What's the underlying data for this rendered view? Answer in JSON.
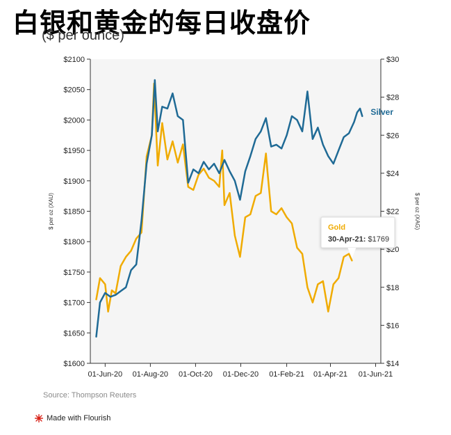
{
  "page": {
    "title": "白银和黄金的每日收盘价",
    "subtitle": "($ per ounce)",
    "source": "Source: Thompson Reuters",
    "made_with": "Made with Flourish"
  },
  "colors": {
    "gold": "#F0AB00",
    "silver": "#1F6A95",
    "plot_bg": "#F5F5F5",
    "axis": "#333333"
  },
  "chart_data": {
    "type": "line",
    "x_ticks": [
      "01-Jun-20",
      "01-Aug-20",
      "01-Oct-20",
      "01-Dec-20",
      "01-Feb-21",
      "01-Apr-21",
      "01-Jun-21"
    ],
    "x_range": [
      "2020-05-12",
      "2021-06-08"
    ],
    "y_left": {
      "label": "$ per oz (XAU)",
      "range": [
        1600,
        2100
      ],
      "ticks": [
        "$1600",
        "$1650",
        "$1700",
        "$1750",
        "$1800",
        "$1850",
        "$1900",
        "$1950",
        "$2000",
        "$2050",
        "$2100"
      ]
    },
    "y_right": {
      "label": "$ per oz (XAG)",
      "range": [
        14,
        30
      ],
      "ticks": [
        "$14",
        "$16",
        "$18",
        "$20",
        "$22",
        "$24",
        "$26",
        "$28",
        "$30"
      ]
    },
    "grid": false,
    "series": [
      {
        "name": "Gold",
        "axis": "left",
        "x": [
          "2020-05-20",
          "2020-05-25",
          "2020-06-01",
          "2020-06-05",
          "2020-06-10",
          "2020-06-15",
          "2020-06-22",
          "2020-06-29",
          "2020-07-06",
          "2020-07-13",
          "2020-07-20",
          "2020-07-27",
          "2020-08-03",
          "2020-08-06",
          "2020-08-11",
          "2020-08-17",
          "2020-08-24",
          "2020-08-31",
          "2020-09-07",
          "2020-09-14",
          "2020-09-21",
          "2020-09-28",
          "2020-10-05",
          "2020-10-12",
          "2020-10-19",
          "2020-10-26",
          "2020-11-02",
          "2020-11-06",
          "2020-11-09",
          "2020-11-16",
          "2020-11-23",
          "2020-11-30",
          "2020-12-07",
          "2020-12-14",
          "2020-12-21",
          "2020-12-28",
          "2021-01-04",
          "2021-01-06",
          "2021-01-11",
          "2021-01-18",
          "2021-01-25",
          "2021-02-01",
          "2021-02-08",
          "2021-02-15",
          "2021-02-22",
          "2021-03-01",
          "2021-03-08",
          "2021-03-15",
          "2021-03-22",
          "2021-03-29",
          "2021-04-05",
          "2021-04-12",
          "2021-04-19",
          "2021-04-26",
          "2021-04-30"
        ],
        "values": [
          1705,
          1740,
          1730,
          1685,
          1720,
          1715,
          1760,
          1775,
          1785,
          1805,
          1815,
          1940,
          1975,
          2060,
          1925,
          1995,
          1935,
          1965,
          1930,
          1960,
          1890,
          1885,
          1910,
          1920,
          1905,
          1900,
          1890,
          1950,
          1860,
          1880,
          1810,
          1775,
          1840,
          1845,
          1875,
          1880,
          1945,
          1915,
          1850,
          1845,
          1855,
          1840,
          1830,
          1790,
          1780,
          1725,
          1700,
          1730,
          1735,
          1685,
          1730,
          1740,
          1775,
          1780,
          1769
        ]
      },
      {
        "name": "Silver",
        "axis": "right",
        "x": [
          "2020-05-20",
          "2020-05-25",
          "2020-06-01",
          "2020-06-08",
          "2020-06-15",
          "2020-06-22",
          "2020-06-29",
          "2020-07-06",
          "2020-07-13",
          "2020-07-20",
          "2020-07-27",
          "2020-08-03",
          "2020-08-07",
          "2020-08-11",
          "2020-08-17",
          "2020-08-24",
          "2020-08-31",
          "2020-09-07",
          "2020-09-14",
          "2020-09-21",
          "2020-09-28",
          "2020-10-05",
          "2020-10-12",
          "2020-10-19",
          "2020-10-26",
          "2020-11-02",
          "2020-11-09",
          "2020-11-16",
          "2020-11-23",
          "2020-11-30",
          "2020-12-07",
          "2020-12-14",
          "2020-12-21",
          "2020-12-28",
          "2021-01-04",
          "2021-01-11",
          "2021-01-18",
          "2021-01-25",
          "2021-02-01",
          "2021-02-08",
          "2021-02-15",
          "2021-02-22",
          "2021-03-01",
          "2021-03-08",
          "2021-03-15",
          "2021-03-22",
          "2021-03-29",
          "2021-04-05",
          "2021-04-12",
          "2021-04-19",
          "2021-04-26",
          "2021-05-03",
          "2021-05-07",
          "2021-05-11",
          "2021-05-14"
        ],
        "values": [
          15.4,
          17.2,
          17.7,
          17.5,
          17.6,
          17.8,
          18.0,
          18.9,
          19.2,
          21.5,
          24.5,
          26.0,
          28.9,
          26.2,
          27.5,
          27.4,
          28.2,
          27.0,
          26.8,
          23.5,
          24.2,
          24.0,
          24.6,
          24.2,
          24.5,
          24.0,
          24.7,
          24.1,
          23.6,
          22.6,
          24.1,
          24.9,
          25.8,
          26.2,
          26.9,
          25.4,
          25.5,
          25.3,
          26.0,
          27.0,
          26.8,
          26.2,
          28.3,
          25.8,
          26.4,
          25.5,
          24.9,
          24.5,
          25.2,
          25.9,
          26.1,
          26.7,
          27.2,
          27.4,
          27.0
        ]
      }
    ],
    "annotations": [
      {
        "type": "series-label",
        "text": "Silver",
        "x": "2021-05-14",
        "y": 27.0,
        "axis": "right"
      },
      {
        "type": "tooltip",
        "series_label": "Gold",
        "date_label": "30-Apr-21:",
        "value_label": "$1769",
        "x": "2021-04-30",
        "y": 1769,
        "axis": "left"
      }
    ]
  }
}
